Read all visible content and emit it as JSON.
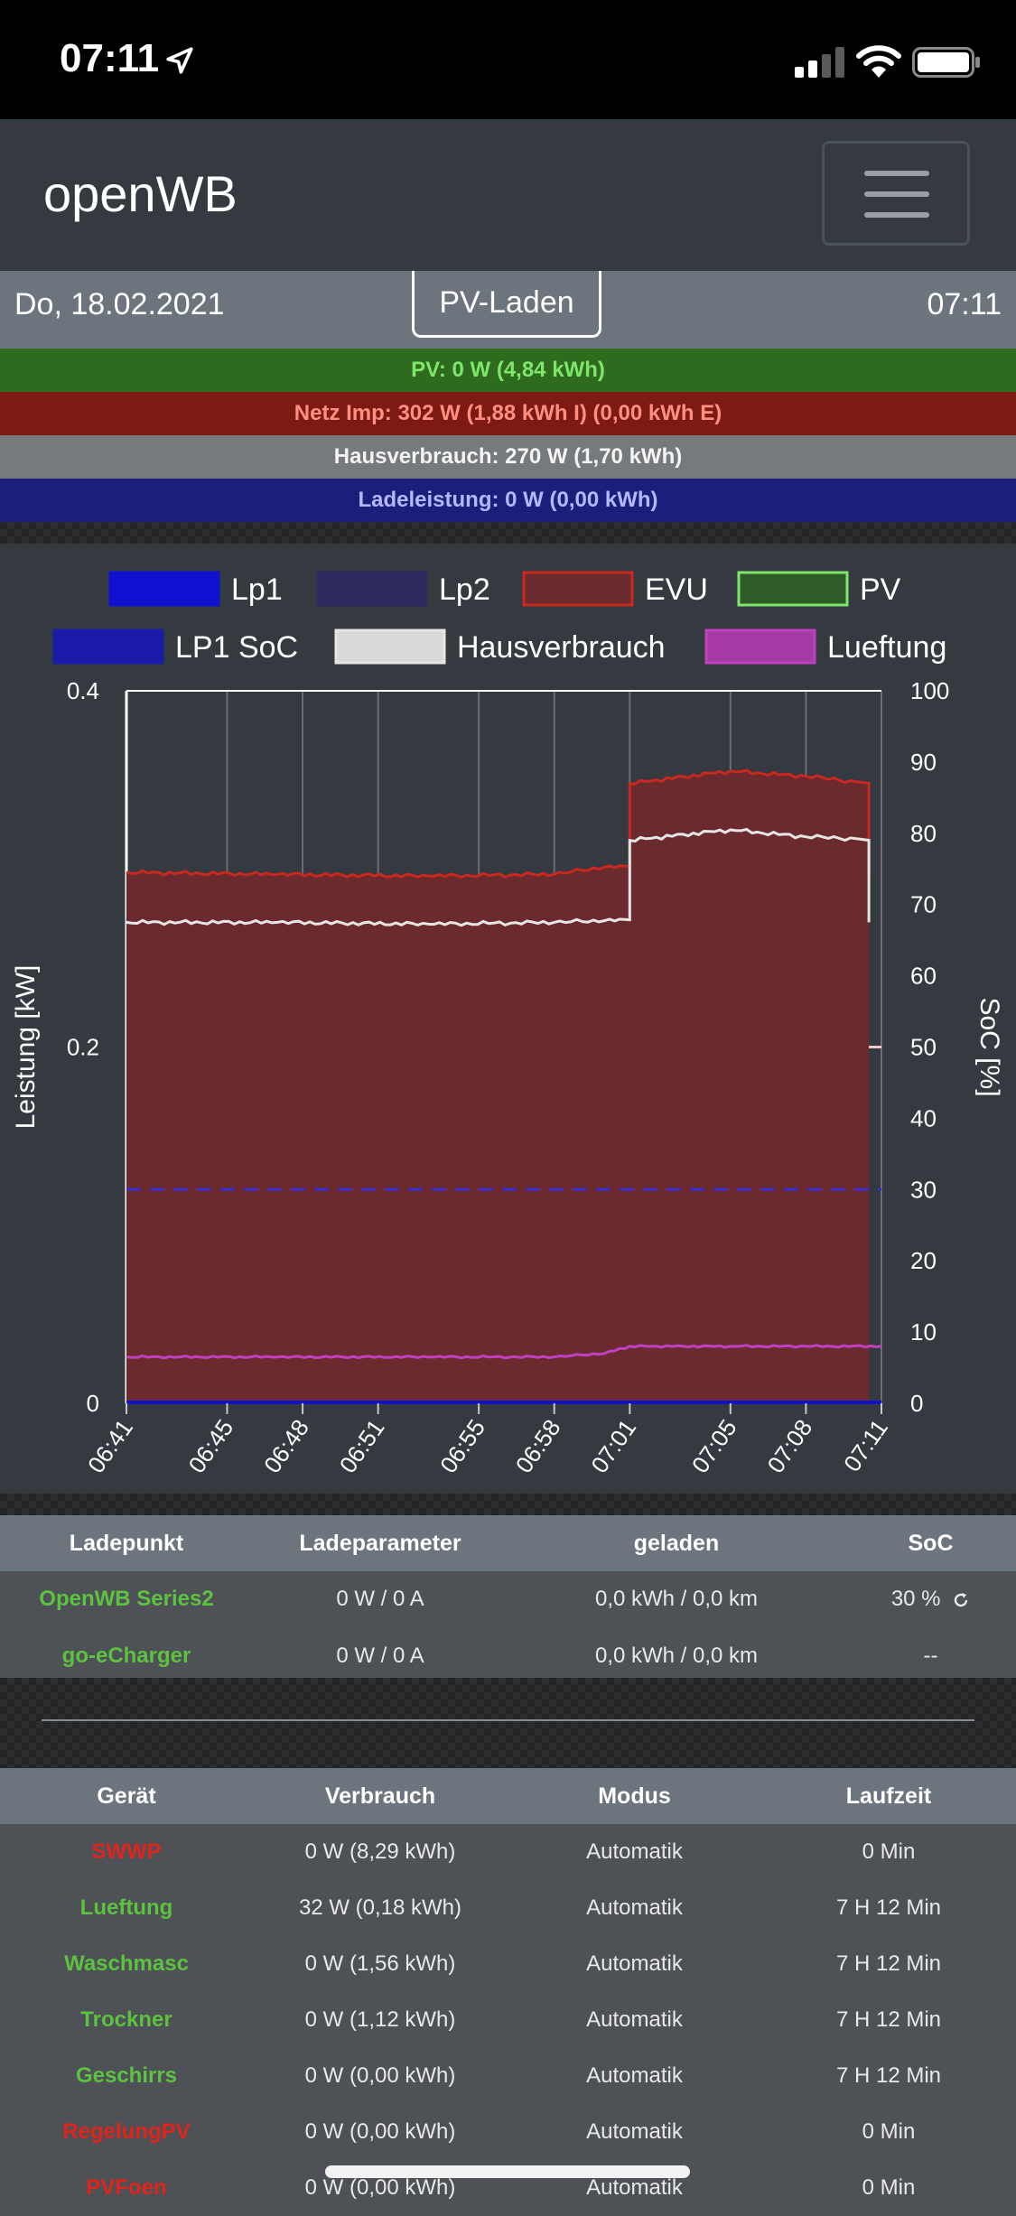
{
  "status_bar": {
    "time": "07:11"
  },
  "navbar": {
    "brand": "openWB"
  },
  "datebar": {
    "date": "Do, 18.02.2021",
    "mode": "PV-Laden",
    "time": "07:11"
  },
  "info_bars": {
    "pv": "PV: 0 W (4,84 kWh)",
    "netz": "Netz Imp: 302 W (1,88 kWh I) (0,00 kWh E)",
    "haus": "Hausverbrauch: 270 W (1,70 kWh)",
    "lade": "Ladeleistung: 0 W (0,00 kWh)"
  },
  "colors": {
    "lp1": "#1010d0",
    "lp2": "#2e2a5e",
    "evu": "#c9281e",
    "evu_fill": "#6b2b2e",
    "pv": "#7ee66b",
    "lp1_soc": "#2020c0",
    "haus": "#e6e6e6",
    "lueftung": "#c040c0",
    "green_text": "#5cc23f",
    "red_text": "#e0241c"
  },
  "legend": [
    {
      "label": "Lp1",
      "key": "lp1"
    },
    {
      "label": "Lp2",
      "key": "lp2"
    },
    {
      "label": "EVU",
      "key": "evu"
    },
    {
      "label": "PV",
      "key": "pv"
    },
    {
      "label": "LP1 SoC",
      "key": "lp1_soc"
    },
    {
      "label": "Hausverbrauch",
      "key": "haus"
    },
    {
      "label": "Lueftung",
      "key": "lueftung"
    }
  ],
  "chart_data": {
    "type": "line",
    "ylabel_left": "Leistung [kW]",
    "ylabel_right": "SoC [%]",
    "y_left_ticks": [
      "0.4",
      "0.2",
      "0"
    ],
    "y_right_ticks": [
      "100",
      "90",
      "80",
      "70",
      "60",
      "50",
      "40",
      "30",
      "20",
      "10",
      "0"
    ],
    "ylim_left": [
      0,
      0.4
    ],
    "ylim_right": [
      0,
      100
    ],
    "x_ticks": [
      "06:41",
      "06:45",
      "06:48",
      "06:51",
      "06:55",
      "06:58",
      "07:01",
      "07:05",
      "07:08",
      "07:11"
    ],
    "series": [
      {
        "name": "EVU",
        "key": "evu",
        "x": [
          "06:41",
          "06:47",
          "06:53",
          "06:58",
          "07:00",
          "07:01",
          "07:05",
          "07:08",
          "07:10",
          "07:10.5"
        ],
        "values": [
          0.298,
          0.297,
          0.296,
          0.297,
          0.301,
          0.348,
          0.355,
          0.352,
          0.349,
          0.297
        ]
      },
      {
        "name": "Hausverbrauch",
        "key": "haus",
        "x": [
          "06:41",
          "06:47",
          "06:53",
          "06:58",
          "07:00",
          "07:01",
          "07:05",
          "07:08",
          "07:10",
          "07:10.5"
        ],
        "values": [
          0.27,
          0.27,
          0.269,
          0.27,
          0.271,
          0.316,
          0.322,
          0.318,
          0.317,
          0.27
        ]
      },
      {
        "name": "Lueftung",
        "key": "lueftung",
        "x": [
          "06:41",
          "06:47",
          "06:53",
          "06:58",
          "07:00",
          "07:01",
          "07:05",
          "07:08",
          "07:11"
        ],
        "values": [
          0.026,
          0.026,
          0.026,
          0.026,
          0.028,
          0.032,
          0.032,
          0.032,
          0.032
        ]
      },
      {
        "name": "Lp1",
        "key": "lp1",
        "x": [
          "06:41",
          "07:11"
        ],
        "values": [
          0,
          0
        ]
      },
      {
        "name": "LP1 SoC",
        "key": "lp2",
        "x": [
          "06:41",
          "07:11"
        ],
        "values_right": [
          30,
          30
        ]
      },
      {
        "name": "PV",
        "key": "pv",
        "x": [
          "06:41",
          "07:11"
        ],
        "values": [
          0,
          0
        ]
      }
    ],
    "grid": true
  },
  "lp_table": {
    "headers": [
      "Ladepunkt",
      "Ladeparameter",
      "geladen",
      "SoC"
    ],
    "rows": [
      {
        "name": "OpenWB Series2",
        "param": "0 W / 0 A",
        "geladen": "0,0 kWh / 0,0 km",
        "soc": "30 %"
      },
      {
        "name": "go-eCharger",
        "param": "0 W / 0 A",
        "geladen": "0,0 kWh / 0,0 km",
        "soc": "--"
      }
    ]
  },
  "device_table": {
    "headers": [
      "Gerät",
      "Verbrauch",
      "Modus",
      "Laufzeit"
    ],
    "rows": [
      {
        "name": "SWWP",
        "state": "red",
        "verbrauch": "0 W (8,29 kWh)",
        "modus": "Automatik",
        "laufzeit": "0 Min"
      },
      {
        "name": "Lueftung",
        "state": "green",
        "verbrauch": "32 W (0,18 kWh)",
        "modus": "Automatik",
        "laufzeit": "7 H 12 Min"
      },
      {
        "name": "Waschmasc",
        "state": "green",
        "verbrauch": "0 W (1,56 kWh)",
        "modus": "Automatik",
        "laufzeit": "7 H 12 Min"
      },
      {
        "name": "Trockner",
        "state": "green",
        "verbrauch": "0 W (1,12 kWh)",
        "modus": "Automatik",
        "laufzeit": "7 H 12 Min"
      },
      {
        "name": "Geschirrs",
        "state": "green",
        "verbrauch": "0 W (0,00 kWh)",
        "modus": "Automatik",
        "laufzeit": "7 H 12 Min"
      },
      {
        "name": "RegelungPV",
        "state": "red",
        "verbrauch": "0 W (0,00 kWh)",
        "modus": "Automatik",
        "laufzeit": "0 Min"
      },
      {
        "name": "PVFoen",
        "state": "red",
        "verbrauch": "0 W (0,00 kWh)",
        "modus": "Automatik",
        "laufzeit": "0 Min"
      }
    ]
  }
}
